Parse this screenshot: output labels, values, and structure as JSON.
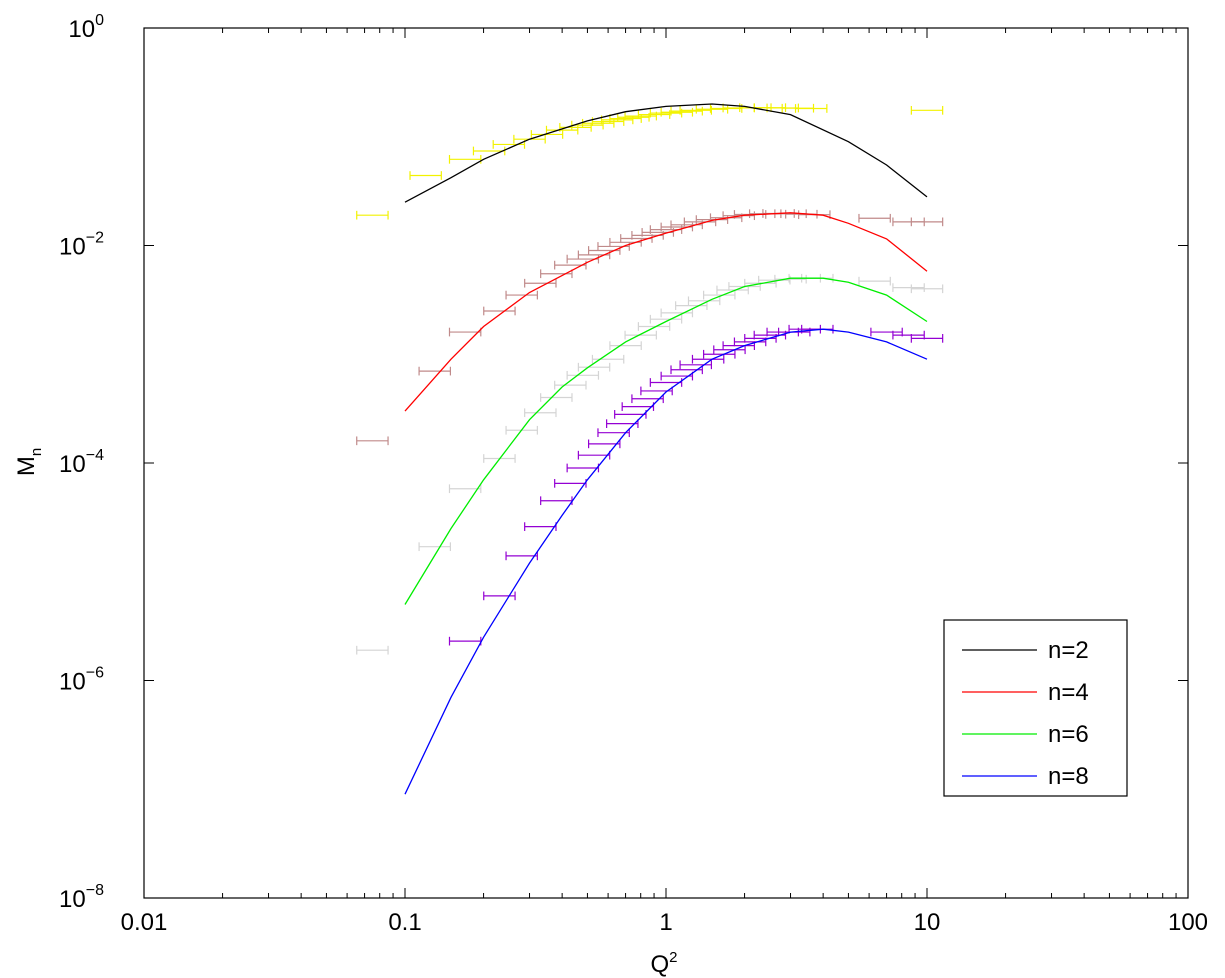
{
  "chart_data": {
    "type": "line",
    "title": "",
    "xlabel": {
      "base": "Q",
      "sup": "2"
    },
    "ylabel": {
      "base": "M",
      "sub": "n"
    },
    "xscale": "log",
    "yscale": "log",
    "xlim": [
      0.01,
      100
    ],
    "ylim": [
      1e-08,
      1
    ],
    "xticks": [
      {
        "value": 0.01,
        "label": "0.01"
      },
      {
        "value": 0.1,
        "label": "0.1"
      },
      {
        "value": 1,
        "label": "1"
      },
      {
        "value": 10,
        "label": "10"
      },
      {
        "value": 100,
        "label": "100"
      }
    ],
    "yticks": [
      {
        "value": 1e-08,
        "base": "10",
        "exp": "−8"
      },
      {
        "value": 1e-06,
        "base": "10",
        "exp": "−6"
      },
      {
        "value": 0.0001,
        "base": "10",
        "exp": "−4"
      },
      {
        "value": 0.01,
        "base": "10",
        "exp": "−2"
      },
      {
        "value": 1,
        "base": "10",
        "exp": "0"
      }
    ],
    "grid": false,
    "legend_position": "bottom-right",
    "series": [
      {
        "name": "n=2",
        "color": "#000000",
        "x": [
          0.1,
          0.15,
          0.2,
          0.3,
          0.5,
          0.7,
          1.0,
          1.5,
          2.0,
          3.0,
          5.0,
          7.0,
          10.0
        ],
        "y": [
          0.025,
          0.042,
          0.062,
          0.095,
          0.14,
          0.17,
          0.19,
          0.2,
          0.19,
          0.16,
          0.09,
          0.055,
          0.028
        ]
      },
      {
        "name": "n=4",
        "color": "#ff0000",
        "x": [
          0.1,
          0.15,
          0.2,
          0.3,
          0.5,
          0.7,
          1.0,
          1.5,
          2.0,
          3.0,
          4.0,
          5.0,
          7.0,
          10.0
        ],
        "y": [
          0.0003,
          0.0009,
          0.0018,
          0.0037,
          0.007,
          0.01,
          0.013,
          0.017,
          0.019,
          0.02,
          0.019,
          0.016,
          0.0115,
          0.0058
        ]
      },
      {
        "name": "n=6",
        "color": "#00ee00",
        "x": [
          0.1,
          0.15,
          0.2,
          0.3,
          0.4,
          0.5,
          0.7,
          1.0,
          1.5,
          2.0,
          3.0,
          4.0,
          5.0,
          7.0,
          10.0
        ],
        "y": [
          5e-06,
          2.5e-05,
          7e-05,
          0.00025,
          0.0005,
          0.00075,
          0.0013,
          0.002,
          0.0032,
          0.0042,
          0.005,
          0.005,
          0.0046,
          0.0035,
          0.002
        ]
      },
      {
        "name": "n=8",
        "color": "#0000ff",
        "x": [
          0.1,
          0.15,
          0.2,
          0.3,
          0.4,
          0.5,
          0.7,
          1.0,
          1.5,
          2.0,
          3.0,
          4.0,
          5.0,
          7.0,
          10.0
        ],
        "y": [
          9e-08,
          7e-07,
          2.5e-06,
          1.2e-05,
          3.3e-05,
          7e-05,
          0.00019,
          0.00045,
          0.0009,
          0.0012,
          0.0016,
          0.0017,
          0.0016,
          0.0013,
          0.0009
        ]
      }
    ],
    "error_bar_series": [
      {
        "group": "n=2",
        "color": "#f2f200",
        "dx": 0.06,
        "dy": 0.08,
        "x": [
          0.075,
          0.12,
          0.17,
          0.21,
          0.25,
          0.3,
          0.35,
          0.4,
          0.45,
          0.5,
          0.55,
          0.6,
          0.65,
          0.7,
          0.75,
          0.8,
          0.9,
          1.0,
          1.1,
          1.2,
          1.3,
          1.5,
          1.7,
          1.9,
          2.2,
          2.5,
          2.8,
          3.2,
          3.6,
          10.0
        ],
        "y": [
          0.019,
          0.044,
          0.062,
          0.074,
          0.085,
          0.095,
          0.105,
          0.115,
          0.122,
          0.128,
          0.133,
          0.138,
          0.143,
          0.147,
          0.151,
          0.155,
          0.16,
          0.165,
          0.168,
          0.172,
          0.175,
          0.179,
          0.182,
          0.184,
          0.185,
          0.185,
          0.184,
          0.183,
          0.182,
          0.175
        ]
      },
      {
        "group": "n=4",
        "color": "#c08a8a",
        "dx": 0.06,
        "dy": 0.08,
        "x": [
          0.075,
          0.13,
          0.17,
          0.23,
          0.28,
          0.33,
          0.38,
          0.43,
          0.48,
          0.53,
          0.58,
          0.63,
          0.7,
          0.77,
          0.85,
          0.93,
          1.0,
          1.1,
          1.2,
          1.35,
          1.5,
          1.7,
          1.9,
          2.1,
          2.4,
          2.7,
          3.0,
          3.3,
          3.7,
          6.3,
          8.5,
          10.0
        ],
        "y": [
          0.00016,
          0.0007,
          0.0016,
          0.0025,
          0.0035,
          0.0045,
          0.0055,
          0.0066,
          0.0075,
          0.0082,
          0.009,
          0.0098,
          0.0107,
          0.0116,
          0.0124,
          0.0132,
          0.014,
          0.0148,
          0.0155,
          0.0165,
          0.0173,
          0.018,
          0.0188,
          0.0193,
          0.0196,
          0.0197,
          0.0196,
          0.0194,
          0.0192,
          0.0178,
          0.0165,
          0.0165
        ]
      },
      {
        "group": "n=6",
        "color": "#d4d4d4",
        "dx": 0.06,
        "dy": 0.08,
        "x": [
          0.075,
          0.13,
          0.17,
          0.23,
          0.28,
          0.33,
          0.38,
          0.43,
          0.48,
          0.53,
          0.6,
          0.7,
          0.8,
          0.9,
          1.0,
          1.1,
          1.25,
          1.4,
          1.6,
          1.8,
          2.0,
          2.3,
          2.6,
          3.0,
          3.4,
          3.8,
          6.3,
          8.5,
          10.0
        ],
        "y": [
          1.9e-06,
          1.7e-05,
          5.8e-05,
          0.00011,
          0.0002,
          0.00029,
          0.0004,
          0.00052,
          0.00064,
          0.00076,
          0.0009,
          0.0012,
          0.0015,
          0.0018,
          0.0021,
          0.0024,
          0.0028,
          0.0031,
          0.0035,
          0.0039,
          0.0042,
          0.0045,
          0.0048,
          0.0049,
          0.005,
          0.005,
          0.0047,
          0.0041,
          0.004
        ]
      },
      {
        "group": "n=8",
        "color": "#9400d3",
        "dx": 0.06,
        "dy": 0.08,
        "x": [
          0.17,
          0.23,
          0.28,
          0.33,
          0.38,
          0.43,
          0.48,
          0.53,
          0.58,
          0.63,
          0.68,
          0.73,
          0.78,
          0.85,
          0.92,
          1.0,
          1.1,
          1.2,
          1.3,
          1.45,
          1.6,
          1.75,
          1.9,
          2.1,
          2.3,
          2.5,
          2.8,
          3.1,
          3.4,
          3.8,
          7.0,
          8.5,
          10.0
        ],
        "y": [
          2.3e-06,
          6e-06,
          1.4e-05,
          2.6e-05,
          4.5e-05,
          6.5e-05,
          9e-05,
          0.000118,
          0.00015,
          0.00019,
          0.00023,
          0.00028,
          0.00033,
          0.00039,
          0.00046,
          0.00055,
          0.00063,
          0.00072,
          0.0008,
          0.0009,
          0.001,
          0.0011,
          0.0012,
          0.0013,
          0.0014,
          0.0015,
          0.0016,
          0.0016,
          0.0017,
          0.0017,
          0.0016,
          0.0015,
          0.0014
        ]
      }
    ]
  }
}
